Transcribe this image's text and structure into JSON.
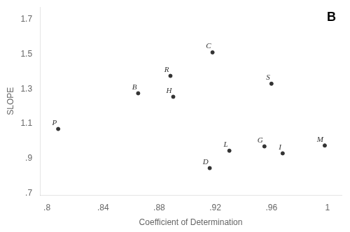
{
  "chart_data": {
    "type": "scatter",
    "xlabel": "Coefficient of Determination",
    "ylabel": "SLOPE",
    "x": [
      0.96,
      0.89,
      0.865,
      0.888,
      0.918,
      0.808,
      0.93,
      0.998,
      0.955,
      0.916,
      0.968
    ],
    "values": [
      1.33,
      1.255,
      1.275,
      1.375,
      1.51,
      1.07,
      0.945,
      0.975,
      0.97,
      0.845,
      0.93
    ],
    "point_labels": [
      "S",
      "H",
      "B",
      "R",
      "C",
      "P",
      "L",
      "M",
      "G",
      "D",
      "I"
    ],
    "annotations": [
      {
        "text": "B"
      }
    ],
    "color": "#333333",
    "xlim": [
      0.795,
      1.01
    ],
    "ylim": [
      0.69,
      1.77
    ],
    "xticks": [
      {
        "value": 0.8,
        "label": ".8"
      },
      {
        "value": 0.84,
        "label": ".84"
      },
      {
        "value": 0.88,
        "label": ".88"
      },
      {
        "value": 0.92,
        "label": ".92"
      },
      {
        "value": 0.96,
        "label": ".96"
      },
      1
    ],
    "yticks": [
      {
        "value": 0.7,
        "label": ".7"
      },
      {
        "value": 0.9,
        "label": ".9"
      },
      1.1,
      1.3,
      1.5,
      1.7
    ],
    "grid": false
  }
}
